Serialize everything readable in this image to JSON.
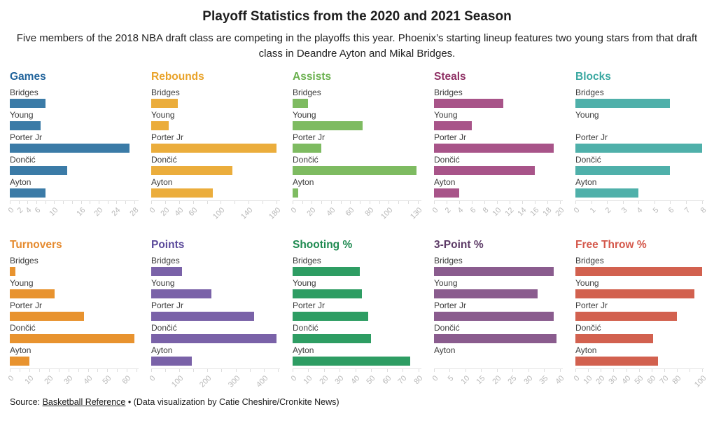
{
  "header": {
    "title": "Playoff Statistics from the 2020 and 2021 Season",
    "subtitle": "Five members of the 2018 NBA draft class are competing in the playoffs this year. Phoenix’s starting lineup features two young stars from that draft class in Deandre Ayton and Mikal Bridges."
  },
  "players": [
    "Bridges",
    "Young",
    "Porter Jr",
    "Dončić",
    "Ayton"
  ],
  "chart_data": [
    {
      "id": "games",
      "type": "bar",
      "orientation": "horizontal",
      "title": "Games",
      "title_color": "#20639B",
      "bar_color": "#3B7BA7",
      "categories": [
        "Bridges",
        "Young",
        "Porter Jr",
        "Dončić",
        "Ayton"
      ],
      "values": [
        8,
        7,
        27,
        13,
        8
      ],
      "xlim": [
        0,
        29
      ],
      "tick_step": 2,
      "tick_max": 28,
      "tick_labels": [
        0,
        2,
        4,
        6,
        10,
        16,
        20,
        24,
        28
      ]
    },
    {
      "id": "rebounds",
      "type": "bar",
      "orientation": "horizontal",
      "title": "Rebounds",
      "title_color": "#E9A32A",
      "bar_color": "#EBAD3C",
      "categories": [
        "Bridges",
        "Young",
        "Porter Jr",
        "Dončić",
        "Ayton"
      ],
      "values": [
        38,
        25,
        180,
        117,
        88
      ],
      "xlim": [
        0,
        185
      ],
      "tick_step": 20,
      "tick_max": 180,
      "tick_labels": [
        0,
        20,
        40,
        60,
        100,
        140,
        180
      ]
    },
    {
      "id": "assists",
      "type": "bar",
      "orientation": "horizontal",
      "title": "Assists",
      "title_color": "#6AB04E",
      "bar_color": "#7EBB61",
      "categories": [
        "Bridges",
        "Young",
        "Porter Jr",
        "Dončić",
        "Ayton"
      ],
      "values": [
        16,
        73,
        30,
        129,
        6
      ],
      "xlim": [
        0,
        134
      ],
      "tick_step": 10,
      "tick_max": 130,
      "tick_labels": [
        0,
        20,
        40,
        60,
        80,
        100,
        130
      ]
    },
    {
      "id": "steals",
      "type": "bar",
      "orientation": "horizontal",
      "title": "Steals",
      "title_color": "#8E2F63",
      "bar_color": "#A85489",
      "categories": [
        "Bridges",
        "Young",
        "Porter Jr",
        "Dončić",
        "Ayton"
      ],
      "values": [
        11,
        6,
        19,
        16,
        4
      ],
      "xlim": [
        0,
        20.5
      ],
      "tick_step": 2,
      "tick_max": 20,
      "tick_labels": [
        0,
        2,
        4,
        6,
        8,
        10,
        12,
        14,
        16,
        18,
        20
      ]
    },
    {
      "id": "blocks",
      "type": "bar",
      "orientation": "horizontal",
      "title": "Blocks",
      "title_color": "#3AA8A1",
      "bar_color": "#4FB0AA",
      "categories": [
        "Bridges",
        "Young",
        "Porter Jr",
        "Dončić",
        "Ayton"
      ],
      "values": [
        6,
        0,
        8,
        6,
        4
      ],
      "xlim": [
        0,
        8.15
      ],
      "tick_step": 1,
      "tick_max": 8,
      "tick_labels": [
        0,
        1,
        2,
        3,
        4,
        5,
        6,
        7,
        8
      ]
    },
    {
      "id": "turnovers",
      "type": "bar",
      "orientation": "horizontal",
      "title": "Turnovers",
      "title_color": "#E58A2E",
      "bar_color": "#E8932F",
      "categories": [
        "Bridges",
        "Young",
        "Porter Jr",
        "Dončić",
        "Ayton"
      ],
      "values": [
        3,
        23,
        38,
        64,
        10
      ],
      "xlim": [
        0,
        66
      ],
      "tick_step": 5,
      "tick_max": 65,
      "tick_labels": [
        0,
        10,
        20,
        30,
        40,
        50,
        60
      ]
    },
    {
      "id": "points",
      "type": "bar",
      "orientation": "horizontal",
      "title": "Points",
      "title_color": "#5B4A9B",
      "bar_color": "#7A62A8",
      "categories": [
        "Bridges",
        "Young",
        "Porter Jr",
        "Dončić",
        "Ayton"
      ],
      "values": [
        110,
        215,
        365,
        445,
        145
      ],
      "xlim": [
        0,
        458
      ],
      "tick_step": 50,
      "tick_max": 450,
      "tick_labels": [
        0,
        100,
        200,
        300,
        400
      ]
    },
    {
      "id": "shooting-pct",
      "type": "bar",
      "orientation": "horizontal",
      "title": "Shooting %",
      "title_color": "#1E8A50",
      "bar_color": "#2E9D63",
      "categories": [
        "Bridges",
        "Young",
        "Porter Jr",
        "Dončić",
        "Ayton"
      ],
      "values": [
        43,
        44,
        48,
        50,
        75
      ],
      "xlim": [
        0,
        82
      ],
      "tick_step": 10,
      "tick_max": 80,
      "tick_labels": [
        0,
        10,
        20,
        30,
        40,
        50,
        60,
        70,
        80
      ]
    },
    {
      "id": "three-point-pct",
      "type": "bar",
      "orientation": "horizontal",
      "title": "3-Point %",
      "title_color": "#5C3A66",
      "bar_color": "#8A5C8E",
      "categories": [
        "Bridges",
        "Young",
        "Porter Jr",
        "Dončić",
        "Ayton"
      ],
      "values": [
        38,
        33,
        38,
        39,
        0
      ],
      "xlim": [
        0,
        41
      ],
      "tick_step": 5,
      "tick_max": 40,
      "tick_labels": [
        0,
        5,
        10,
        15,
        20,
        25,
        30,
        35,
        40
      ]
    },
    {
      "id": "free-throw-pct",
      "type": "bar",
      "orientation": "horizontal",
      "title": "Free Throw %",
      "title_color": "#D4574A",
      "bar_color": "#D2614F",
      "categories": [
        "Bridges",
        "Young",
        "Porter Jr",
        "Dončić",
        "Ayton"
      ],
      "values": [
        100,
        94,
        80,
        61,
        65
      ],
      "xlim": [
        0,
        101.5
      ],
      "tick_step": 10,
      "tick_max": 100,
      "tick_labels": [
        0,
        10,
        20,
        30,
        40,
        50,
        60,
        70,
        80,
        100
      ]
    }
  ],
  "footer": {
    "source_prefix": "Source: ",
    "source_link": "Basketball Reference",
    "source_suffix": " • (Data visualization by Catie Cheshire/Cronkite News)"
  }
}
